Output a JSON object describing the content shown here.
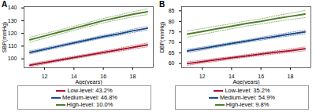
{
  "chart_data": [
    {
      "type": "line",
      "title": "A",
      "xlabel": "Age(years)",
      "ylabel": "SBP(mmHg)",
      "x": [
        11,
        12,
        13,
        14,
        15,
        16,
        17,
        18,
        19
      ],
      "xlim": [
        10.6,
        19.4
      ],
      "xticks": [
        12,
        14,
        16,
        18
      ],
      "ylim": [
        93,
        141
      ],
      "yticks": [
        100,
        110,
        120,
        130,
        140
      ],
      "series": [
        {
          "name": "Low-level: 43.2%",
          "color": "#a8132d",
          "values": [
            95,
            97,
            99,
            101,
            103,
            105,
            107,
            109,
            111
          ],
          "lower": [
            93.8,
            95.9,
            98,
            100,
            102,
            103.9,
            105.8,
            107.7,
            109.5
          ],
          "upper": [
            96.2,
            98.1,
            100,
            102,
            104,
            106.1,
            108.2,
            110.3,
            112.5
          ]
        },
        {
          "name": "Medium-level: 46.8%",
          "color": "#1a4a8a",
          "values": [
            105,
            107.5,
            110,
            112.5,
            115,
            117.5,
            119.5,
            122,
            124
          ],
          "lower": [
            103.8,
            106.4,
            109,
            111.5,
            114,
            116.4,
            118.3,
            120.7,
            122.6
          ],
          "upper": [
            106.2,
            108.6,
            111,
            113.5,
            116,
            118.6,
            120.7,
            123.3,
            125.4
          ]
        },
        {
          "name": "High-level: 10.0%",
          "color": "#4f7d2a",
          "values": [
            115,
            118,
            121,
            124,
            127,
            130,
            132.5,
            135,
            137
          ],
          "lower": [
            113,
            116.2,
            119.3,
            122.4,
            125.4,
            128.3,
            130.7,
            133,
            134.8
          ],
          "upper": [
            117,
            119.8,
            122.7,
            125.6,
            128.6,
            131.7,
            134.3,
            137,
            139.2
          ]
        }
      ]
    },
    {
      "type": "line",
      "title": "B",
      "xlabel": "Age(years)",
      "ylabel": "DBP(mmHg)",
      "x": [
        11,
        12,
        13,
        14,
        15,
        16,
        17,
        18,
        19
      ],
      "xlim": [
        10.6,
        19.4
      ],
      "xticks": [
        12,
        14,
        16,
        18
      ],
      "ylim": [
        58,
        87
      ],
      "yticks": [
        60,
        65,
        70,
        75,
        80,
        85
      ],
      "series": [
        {
          "name": "Low-level: 35.2%",
          "color": "#a8132d",
          "values": [
            60,
            60.9,
            61.8,
            62.7,
            63.6,
            64.5,
            65.3,
            66.1,
            67
          ],
          "lower": [
            59.2,
            60.2,
            61.1,
            62.1,
            63,
            63.8,
            64.6,
            65.3,
            66.1
          ],
          "upper": [
            60.8,
            61.6,
            62.5,
            63.3,
            64.2,
            65.2,
            66,
            66.9,
            67.9
          ]
        },
        {
          "name": "Medium-level: 54.9%",
          "color": "#1a4a8a",
          "values": [
            66,
            67.1,
            68.3,
            69.5,
            70.6,
            71.8,
            72.9,
            74,
            75
          ],
          "lower": [
            65.2,
            66.4,
            67.7,
            68.9,
            70,
            71.1,
            72.2,
            73.2,
            74.1
          ],
          "upper": [
            66.8,
            67.8,
            68.9,
            70.1,
            71.2,
            72.5,
            73.6,
            74.8,
            75.9
          ]
        },
        {
          "name": "High-level: 9.8%",
          "color": "#4f7d2a",
          "values": [
            74,
            75.2,
            76.5,
            77.7,
            79,
            80,
            81.3,
            82.4,
            83.5
          ],
          "lower": [
            72.5,
            73.8,
            75.2,
            76.5,
            77.8,
            78.8,
            79.9,
            80.9,
            81.8
          ],
          "upper": [
            75.5,
            76.6,
            77.8,
            78.9,
            80.2,
            81.2,
            82.7,
            83.9,
            85.2
          ]
        }
      ]
    }
  ]
}
